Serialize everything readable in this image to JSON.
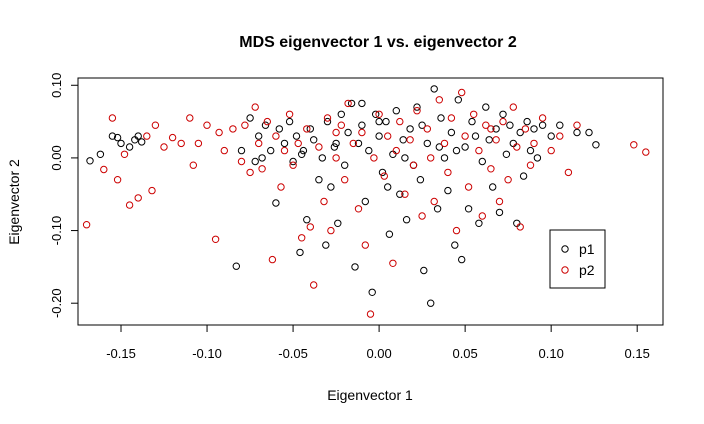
{
  "chart_data": {
    "type": "scatter",
    "title": "MDS eigenvector 1 vs. eigenvector 2",
    "xlabel": "Eigenvector 1",
    "ylabel": "Eigenvector 2",
    "xlim": [
      -0.175,
      0.165
    ],
    "ylim": [
      -0.23,
      0.11
    ],
    "xticks": [
      -0.15,
      -0.1,
      -0.05,
      0.0,
      0.05,
      0.1,
      0.15
    ],
    "xtick_labels": [
      "-0.15",
      "-0.10",
      "-0.05",
      "0.00",
      "0.05",
      "0.10",
      "0.15"
    ],
    "yticks": [
      -0.2,
      -0.1,
      0.0,
      0.1
    ],
    "ytick_labels": [
      "-0.20",
      "-0.10",
      "0.00",
      "0.10"
    ],
    "grid": false,
    "legend_position": "bottom-right",
    "series": [
      {
        "name": "p1",
        "color": "#000000",
        "marker": "open-circle",
        "points": [
          [
            -0.168,
            -0.004
          ],
          [
            -0.162,
            0.005
          ],
          [
            -0.155,
            0.03
          ],
          [
            -0.152,
            0.028
          ],
          [
            -0.15,
            0.02
          ],
          [
            -0.145,
            0.015
          ],
          [
            -0.142,
            0.025
          ],
          [
            -0.14,
            0.03
          ],
          [
            -0.138,
            0.022
          ],
          [
            -0.083,
            -0.149
          ],
          [
            -0.08,
            0.01
          ],
          [
            -0.075,
            0.055
          ],
          [
            -0.072,
            -0.005
          ],
          [
            -0.07,
            0.03
          ],
          [
            -0.068,
            0.0
          ],
          [
            -0.066,
            0.045
          ],
          [
            -0.063,
            0.01
          ],
          [
            -0.06,
            -0.062
          ],
          [
            -0.058,
            0.04
          ],
          [
            -0.055,
            0.02
          ],
          [
            -0.052,
            0.05
          ],
          [
            -0.05,
            -0.005
          ],
          [
            -0.048,
            0.03
          ],
          [
            -0.046,
            -0.13
          ],
          [
            -0.044,
            0.01
          ],
          [
            -0.042,
            -0.085
          ],
          [
            -0.04,
            0.04
          ],
          [
            -0.038,
            0.025
          ],
          [
            -0.035,
            -0.03
          ],
          [
            -0.033,
            0.0
          ],
          [
            -0.031,
            -0.12
          ],
          [
            -0.03,
            0.05
          ],
          [
            -0.028,
            -0.04
          ],
          [
            -0.026,
            0.015
          ],
          [
            -0.024,
            -0.09
          ],
          [
            -0.022,
            0.06
          ],
          [
            -0.02,
            -0.01
          ],
          [
            -0.018,
            0.035
          ],
          [
            -0.016,
            0.075
          ],
          [
            -0.014,
            -0.15
          ],
          [
            -0.012,
            0.02
          ],
          [
            -0.01,
            0.045
          ],
          [
            -0.008,
            -0.06
          ],
          [
            -0.006,
            0.01
          ],
          [
            -0.004,
            -0.185
          ],
          [
            -0.002,
            0.06
          ],
          [
            0.0,
            0.03
          ],
          [
            0.002,
            -0.02
          ],
          [
            0.004,
            0.05
          ],
          [
            0.006,
            -0.105
          ],
          [
            0.008,
            0.005
          ],
          [
            0.01,
            0.065
          ],
          [
            0.012,
            -0.05
          ],
          [
            0.014,
            0.025
          ],
          [
            0.016,
            -0.085
          ],
          [
            0.018,
            0.04
          ],
          [
            0.02,
            -0.01
          ],
          [
            0.022,
            0.07
          ],
          [
            0.024,
            -0.03
          ],
          [
            0.026,
            -0.155
          ],
          [
            0.028,
            0.02
          ],
          [
            0.03,
            -0.2
          ],
          [
            0.032,
            0.095
          ],
          [
            0.034,
            -0.07
          ],
          [
            0.036,
            0.055
          ],
          [
            0.038,
            0.0
          ],
          [
            0.04,
            -0.045
          ],
          [
            0.042,
            0.035
          ],
          [
            0.044,
            -0.12
          ],
          [
            0.046,
            0.08
          ],
          [
            0.048,
            -0.14
          ],
          [
            0.05,
            0.015
          ],
          [
            0.052,
            -0.07
          ],
          [
            0.054,
            0.05
          ],
          [
            0.056,
            0.03
          ],
          [
            0.058,
            -0.09
          ],
          [
            0.06,
            -0.005
          ],
          [
            0.062,
            0.07
          ],
          [
            0.064,
            0.025
          ],
          [
            0.066,
            -0.04
          ],
          [
            0.068,
            0.04
          ],
          [
            0.07,
            -0.075
          ],
          [
            0.072,
            0.06
          ],
          [
            0.074,
            0.005
          ],
          [
            0.076,
            0.045
          ],
          [
            0.078,
            0.02
          ],
          [
            0.08,
            -0.09
          ],
          [
            0.082,
            0.035
          ],
          [
            0.084,
            -0.025
          ],
          [
            0.086,
            0.05
          ],
          [
            0.088,
            0.01
          ],
          [
            0.09,
            0.04
          ],
          [
            0.092,
            0.0
          ],
          [
            0.095,
            0.045
          ],
          [
            0.1,
            0.03
          ],
          [
            0.105,
            0.045
          ],
          [
            0.115,
            0.035
          ],
          [
            0.122,
            0.035
          ],
          [
            0.126,
            0.018
          ],
          [
            -0.01,
            0.075
          ],
          [
            0.0,
            0.05
          ],
          [
            0.005,
            -0.04
          ],
          [
            0.015,
            0.0
          ],
          [
            -0.025,
            0.02
          ],
          [
            0.035,
            0.015
          ],
          [
            0.045,
            0.01
          ],
          [
            -0.045,
            0.005
          ],
          [
            0.025,
            0.045
          ]
        ]
      },
      {
        "name": "p2",
        "color": "#cc0000",
        "marker": "open-circle",
        "points": [
          [
            -0.17,
            -0.092
          ],
          [
            -0.16,
            -0.016
          ],
          [
            -0.155,
            0.055
          ],
          [
            -0.152,
            -0.03
          ],
          [
            -0.148,
            0.005
          ],
          [
            -0.145,
            -0.065
          ],
          [
            -0.14,
            -0.055
          ],
          [
            -0.135,
            0.03
          ],
          [
            -0.132,
            -0.045
          ],
          [
            -0.13,
            0.045
          ],
          [
            -0.12,
            0.028
          ],
          [
            -0.11,
            0.055
          ],
          [
            -0.108,
            -0.01
          ],
          [
            -0.105,
            0.02
          ],
          [
            -0.1,
            0.045
          ],
          [
            -0.095,
            -0.112
          ],
          [
            -0.093,
            0.035
          ],
          [
            -0.09,
            0.01
          ],
          [
            -0.085,
            0.04
          ],
          [
            -0.08,
            -0.005
          ],
          [
            -0.078,
            0.045
          ],
          [
            -0.075,
            -0.02
          ],
          [
            -0.072,
            0.07
          ],
          [
            -0.07,
            0.02
          ],
          [
            -0.068,
            -0.015
          ],
          [
            -0.065,
            0.05
          ],
          [
            -0.062,
            -0.14
          ],
          [
            -0.06,
            0.03
          ],
          [
            -0.057,
            -0.04
          ],
          [
            -0.055,
            0.01
          ],
          [
            -0.052,
            0.06
          ],
          [
            -0.05,
            -0.01
          ],
          [
            -0.047,
            0.02
          ],
          [
            -0.045,
            -0.11
          ],
          [
            -0.042,
            0.04
          ],
          [
            -0.04,
            -0.095
          ],
          [
            -0.038,
            -0.175
          ],
          [
            -0.035,
            0.015
          ],
          [
            -0.032,
            -0.06
          ],
          [
            -0.03,
            0.055
          ],
          [
            -0.028,
            -0.1
          ],
          [
            -0.025,
            0.0
          ],
          [
            -0.022,
            0.045
          ],
          [
            -0.02,
            -0.03
          ],
          [
            -0.018,
            0.075
          ],
          [
            -0.015,
            0.02
          ],
          [
            -0.012,
            -0.07
          ],
          [
            -0.01,
            0.035
          ],
          [
            -0.008,
            -0.12
          ],
          [
            -0.005,
            -0.215
          ],
          [
            -0.003,
            0.0
          ],
          [
            0.0,
            0.06
          ],
          [
            0.003,
            -0.025
          ],
          [
            0.005,
            0.03
          ],
          [
            0.008,
            -0.145
          ],
          [
            0.01,
            0.01
          ],
          [
            0.012,
            0.05
          ],
          [
            0.015,
            -0.05
          ],
          [
            0.018,
            0.025
          ],
          [
            0.02,
            -0.01
          ],
          [
            0.022,
            0.065
          ],
          [
            0.025,
            -0.08
          ],
          [
            0.028,
            0.04
          ],
          [
            0.03,
            0.0
          ],
          [
            0.032,
            -0.06
          ],
          [
            0.035,
            0.08
          ],
          [
            0.038,
            0.02
          ],
          [
            0.04,
            -0.02
          ],
          [
            0.042,
            0.055
          ],
          [
            0.045,
            -0.1
          ],
          [
            0.048,
            0.09
          ],
          [
            0.05,
            0.03
          ],
          [
            0.052,
            -0.04
          ],
          [
            0.055,
            0.06
          ],
          [
            0.058,
            0.01
          ],
          [
            0.06,
            -0.08
          ],
          [
            0.062,
            0.045
          ],
          [
            0.065,
            -0.015
          ],
          [
            0.068,
            0.025
          ],
          [
            0.07,
            -0.06
          ],
          [
            0.072,
            0.05
          ],
          [
            0.075,
            -0.03
          ],
          [
            0.078,
            0.07
          ],
          [
            0.08,
            0.015
          ],
          [
            0.082,
            -0.095
          ],
          [
            0.085,
            0.04
          ],
          [
            0.088,
            -0.01
          ],
          [
            0.09,
            0.02
          ],
          [
            0.095,
            0.055
          ],
          [
            0.1,
            0.01
          ],
          [
            0.105,
            0.03
          ],
          [
            0.11,
            -0.02
          ],
          [
            0.115,
            0.045
          ],
          [
            0.148,
            0.018
          ],
          [
            0.155,
            0.008
          ],
          [
            -0.115,
            0.02
          ],
          [
            -0.125,
            0.015
          ],
          [
            0.065,
            0.04
          ],
          [
            -0.025,
            0.035
          ]
        ]
      }
    ]
  }
}
